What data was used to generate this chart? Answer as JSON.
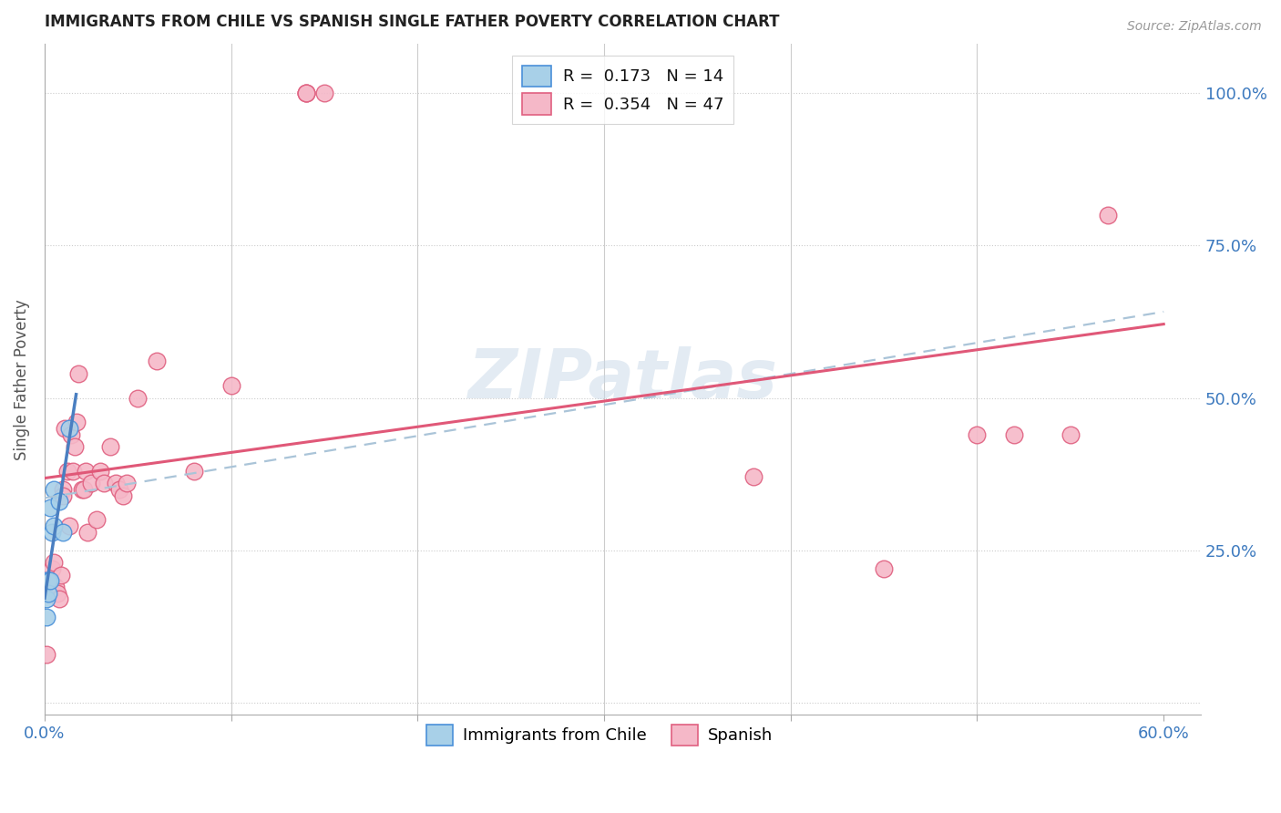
{
  "title": "IMMIGRANTS FROM CHILE VS SPANISH SINGLE FATHER POVERTY CORRELATION CHART",
  "source": "Source: ZipAtlas.com",
  "ylabel": "Single Father Poverty",
  "yticks_labels": [
    "",
    "25.0%",
    "50.0%",
    "75.0%",
    "100.0%"
  ],
  "ytick_vals": [
    0.0,
    0.25,
    0.5,
    0.75,
    1.0
  ],
  "xtick_labels": [
    "0.0%",
    "",
    "",
    "",
    "",
    "",
    "60.0%"
  ],
  "xtick_vals": [
    0.0,
    0.1,
    0.2,
    0.3,
    0.4,
    0.5,
    0.6
  ],
  "xlim": [
    0.0,
    0.62
  ],
  "ylim": [
    -0.02,
    1.08
  ],
  "watermark": "ZIPatlas",
  "color_chile": "#a8d0e8",
  "color_chile_edge": "#4a90d9",
  "color_spanish": "#f5b8c8",
  "color_spanish_edge": "#e06080",
  "color_line_chile": "#4a7fc1",
  "color_line_spanish": "#e05878",
  "color_trend_dashed": "#aac4d8",
  "legend_r_text": "R =  0.173   N = 14",
  "legend_s_text": "R =  0.354   N = 47",
  "legend_bottom_chile": "Immigrants from Chile",
  "legend_bottom_spanish": "Spanish",
  "chile_points_x": [
    0.001,
    0.001,
    0.001,
    0.002,
    0.002,
    0.002,
    0.003,
    0.003,
    0.004,
    0.005,
    0.005,
    0.008,
    0.01,
    0.013
  ],
  "chile_points_y": [
    0.2,
    0.17,
    0.14,
    0.2,
    0.2,
    0.18,
    0.32,
    0.2,
    0.28,
    0.35,
    0.29,
    0.33,
    0.28,
    0.45
  ],
  "spanish_points_x": [
    0.001,
    0.001,
    0.002,
    0.003,
    0.004,
    0.005,
    0.006,
    0.007,
    0.008,
    0.009,
    0.01,
    0.01,
    0.011,
    0.012,
    0.013,
    0.014,
    0.015,
    0.016,
    0.017,
    0.018,
    0.02,
    0.021,
    0.022,
    0.023,
    0.025,
    0.028,
    0.03,
    0.032,
    0.035,
    0.038,
    0.04,
    0.042,
    0.044,
    0.05,
    0.06,
    0.08,
    0.1,
    0.14,
    0.14,
    0.14,
    0.15,
    0.38,
    0.45,
    0.5,
    0.52,
    0.55,
    0.57
  ],
  "spanish_points_y": [
    0.2,
    0.08,
    0.18,
    0.2,
    0.22,
    0.23,
    0.19,
    0.18,
    0.17,
    0.21,
    0.35,
    0.34,
    0.45,
    0.38,
    0.29,
    0.44,
    0.38,
    0.42,
    0.46,
    0.54,
    0.35,
    0.35,
    0.38,
    0.28,
    0.36,
    0.3,
    0.38,
    0.36,
    0.42,
    0.36,
    0.35,
    0.34,
    0.36,
    0.5,
    0.56,
    0.38,
    0.52,
    1.0,
    1.0,
    1.0,
    1.0,
    0.37,
    0.22,
    0.44,
    0.44,
    0.44,
    0.8
  ],
  "line_start_x": 0.0,
  "line_end_x": 0.6
}
